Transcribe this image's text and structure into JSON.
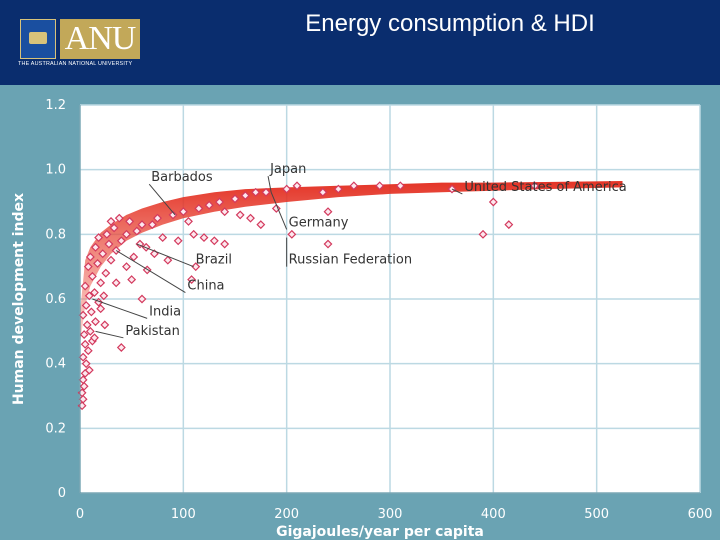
{
  "slide": {
    "title": "Energy consumption & HDI",
    "logo_word": "ANU",
    "logo_subtitle": "THE AUSTRALIAN NATIONAL UNIVERSITY"
  },
  "colors": {
    "header": "#0a2d6e",
    "frame": "#6aa3b3",
    "plot_bg": "#ffffff",
    "grid": "#bcd9e3",
    "band": "#e2281a",
    "marker": "#d33a5e"
  },
  "chart_data": {
    "type": "scatter",
    "title": "",
    "xlabel": "Gigajoules/year per capita",
    "ylabel": "Human development index",
    "xlim": [
      0,
      600
    ],
    "ylim": [
      0,
      1.2
    ],
    "xticks": [
      0,
      100,
      200,
      300,
      400,
      500,
      600
    ],
    "yticks": [
      0,
      0.2,
      0.4,
      0.6,
      0.8,
      1.0,
      1.2
    ],
    "xtick_labels": [
      "0",
      "100",
      "200",
      "300",
      "400",
      "500",
      "600"
    ],
    "ytick_labels": [
      "0",
      "0.2",
      "0.4",
      "0.6",
      "0.8",
      "1.0",
      "1.2"
    ],
    "grid": true,
    "trend_band": {
      "x": [
        0,
        5,
        10,
        20,
        30,
        45,
        60,
        80,
        100,
        130,
        160,
        200,
        250,
        300,
        350,
        400,
        450,
        525
      ],
      "low": [
        0.46,
        0.58,
        0.64,
        0.7,
        0.74,
        0.78,
        0.805,
        0.83,
        0.85,
        0.87,
        0.885,
        0.9,
        0.915,
        0.925,
        0.93,
        0.935,
        0.94,
        0.945
      ],
      "high": [
        0.56,
        0.72,
        0.76,
        0.805,
        0.83,
        0.86,
        0.88,
        0.9,
        0.915,
        0.93,
        0.94,
        0.945,
        0.95,
        0.955,
        0.96,
        0.96,
        0.962,
        0.965
      ]
    },
    "points": [
      {
        "x": 2,
        "y": 0.27
      },
      {
        "x": 3,
        "y": 0.29
      },
      {
        "x": 2,
        "y": 0.31
      },
      {
        "x": 4,
        "y": 0.33
      },
      {
        "x": 3,
        "y": 0.35
      },
      {
        "x": 5,
        "y": 0.37
      },
      {
        "x": 9,
        "y": 0.38
      },
      {
        "x": 6,
        "y": 0.4
      },
      {
        "x": 3,
        "y": 0.42
      },
      {
        "x": 8,
        "y": 0.44
      },
      {
        "x": 5,
        "y": 0.46
      },
      {
        "x": 12,
        "y": 0.47
      },
      {
        "x": 4,
        "y": 0.49
      },
      {
        "x": 10,
        "y": 0.5
      },
      {
        "x": 7,
        "y": 0.52
      },
      {
        "x": 15,
        "y": 0.53
      },
      {
        "x": 3,
        "y": 0.55
      },
      {
        "x": 11,
        "y": 0.56
      },
      {
        "x": 6,
        "y": 0.58
      },
      {
        "x": 18,
        "y": 0.59
      },
      {
        "x": 9,
        "y": 0.61
      },
      {
        "x": 14,
        "y": 0.62
      },
      {
        "x": 5,
        "y": 0.64
      },
      {
        "x": 20,
        "y": 0.65
      },
      {
        "x": 12,
        "y": 0.67
      },
      {
        "x": 25,
        "y": 0.68
      },
      {
        "x": 8,
        "y": 0.7
      },
      {
        "x": 17,
        "y": 0.71
      },
      {
        "x": 30,
        "y": 0.72
      },
      {
        "x": 10,
        "y": 0.73
      },
      {
        "x": 22,
        "y": 0.74
      },
      {
        "x": 35,
        "y": 0.75
      },
      {
        "x": 15,
        "y": 0.76
      },
      {
        "x": 28,
        "y": 0.77
      },
      {
        "x": 40,
        "y": 0.78
      },
      {
        "x": 18,
        "y": 0.79
      },
      {
        "x": 45,
        "y": 0.8
      },
      {
        "x": 26,
        "y": 0.8
      },
      {
        "x": 55,
        "y": 0.81
      },
      {
        "x": 33,
        "y": 0.82
      },
      {
        "x": 60,
        "y": 0.83
      },
      {
        "x": 48,
        "y": 0.84
      },
      {
        "x": 70,
        "y": 0.83
      },
      {
        "x": 38,
        "y": 0.85
      },
      {
        "x": 75,
        "y": 0.85
      },
      {
        "x": 52,
        "y": 0.73
      },
      {
        "x": 64,
        "y": 0.76
      },
      {
        "x": 85,
        "y": 0.72
      },
      {
        "x": 95,
        "y": 0.78
      },
      {
        "x": 110,
        "y": 0.8
      },
      {
        "x": 120,
        "y": 0.79
      },
      {
        "x": 130,
        "y": 0.78
      },
      {
        "x": 140,
        "y": 0.77
      },
      {
        "x": 90,
        "y": 0.86
      },
      {
        "x": 100,
        "y": 0.87
      },
      {
        "x": 115,
        "y": 0.88
      },
      {
        "x": 125,
        "y": 0.89
      },
      {
        "x": 135,
        "y": 0.9
      },
      {
        "x": 150,
        "y": 0.91
      },
      {
        "x": 160,
        "y": 0.92
      },
      {
        "x": 170,
        "y": 0.93
      },
      {
        "x": 180,
        "y": 0.93
      },
      {
        "x": 155,
        "y": 0.86
      },
      {
        "x": 165,
        "y": 0.85
      },
      {
        "x": 175,
        "y": 0.83
      },
      {
        "x": 105,
        "y": 0.84
      },
      {
        "x": 112,
        "y": 0.7
      },
      {
        "x": 108,
        "y": 0.66
      },
      {
        "x": 30,
        "y": 0.84
      },
      {
        "x": 45,
        "y": 0.7
      },
      {
        "x": 35,
        "y": 0.65
      },
      {
        "x": 20,
        "y": 0.57
      },
      {
        "x": 23,
        "y": 0.61
      },
      {
        "x": 40,
        "y": 0.45
      },
      {
        "x": 24,
        "y": 0.52
      },
      {
        "x": 14,
        "y": 0.48
      },
      {
        "x": 60,
        "y": 0.6
      },
      {
        "x": 50,
        "y": 0.66
      },
      {
        "x": 65,
        "y": 0.69
      },
      {
        "x": 80,
        "y": 0.79
      },
      {
        "x": 200,
        "y": 0.94
      },
      {
        "x": 210,
        "y": 0.95
      },
      {
        "x": 235,
        "y": 0.93
      },
      {
        "x": 250,
        "y": 0.94
      },
      {
        "x": 265,
        "y": 0.95
      },
      {
        "x": 290,
        "y": 0.95
      },
      {
        "x": 310,
        "y": 0.95
      },
      {
        "x": 360,
        "y": 0.94
      },
      {
        "x": 440,
        "y": 0.95
      },
      {
        "x": 240,
        "y": 0.87
      },
      {
        "x": 190,
        "y": 0.88
      },
      {
        "x": 205,
        "y": 0.8
      },
      {
        "x": 240,
        "y": 0.77
      },
      {
        "x": 400,
        "y": 0.9
      },
      {
        "x": 390,
        "y": 0.8
      },
      {
        "x": 415,
        "y": 0.83
      },
      {
        "x": 140,
        "y": 0.87
      },
      {
        "x": 58,
        "y": 0.77
      },
      {
        "x": 72,
        "y": 0.74
      }
    ],
    "annotations": [
      {
        "label": "Barbados",
        "x": 92,
        "y": 0.86,
        "tx": 67,
        "ty": 0.955
      },
      {
        "label": "Japan",
        "x": 185,
        "y": 0.93,
        "tx": 182,
        "ty": 0.98
      },
      {
        "label": "United States of America",
        "x": 360,
        "y": 0.94,
        "tx": 370,
        "ty": 0.925
      },
      {
        "label": "Germany",
        "x": 185,
        "y": 0.93,
        "tx": 200,
        "ty": 0.815
      },
      {
        "label": "Russian Federation",
        "x": 200,
        "y": 0.79,
        "tx": 200,
        "ty": 0.7
      },
      {
        "label": "Brazil",
        "x": 55,
        "y": 0.77,
        "tx": 110,
        "ty": 0.7
      },
      {
        "label": "China",
        "x": 35,
        "y": 0.75,
        "tx": 102,
        "ty": 0.62
      },
      {
        "label": "India",
        "x": 12,
        "y": 0.6,
        "tx": 65,
        "ty": 0.54
      },
      {
        "label": "Pakistan",
        "x": 15,
        "y": 0.5,
        "tx": 42,
        "ty": 0.48
      }
    ]
  }
}
